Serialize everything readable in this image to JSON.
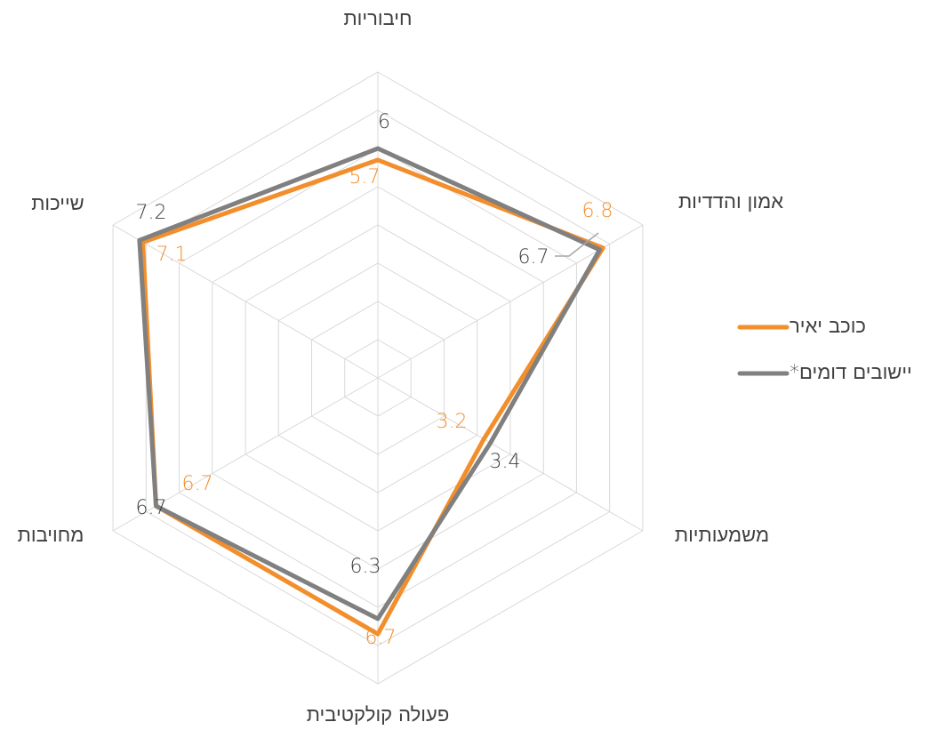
{
  "chart_data": {
    "type": "radar",
    "categories": [
      "חיבוריות",
      "אמון והדדיות",
      "משמעותיות",
      "פעולה קולקטיבית",
      "מחויבות",
      "שייכות"
    ],
    "series": [
      {
        "name": "כוכב יאיר",
        "color": "#f28e2b",
        "values": [
          5.7,
          6.8,
          3.2,
          6.7,
          6.7,
          7.1
        ]
      },
      {
        "name": "יישובים דומים*",
        "color": "#808080",
        "values": [
          6,
          6.7,
          3.4,
          6.3,
          6.7,
          7.2
        ]
      }
    ],
    "rlim": [
      0,
      8
    ],
    "rticks": [
      0,
      1,
      2,
      3,
      4,
      5,
      6,
      7,
      8
    ],
    "grid": true,
    "legend": "right"
  }
}
